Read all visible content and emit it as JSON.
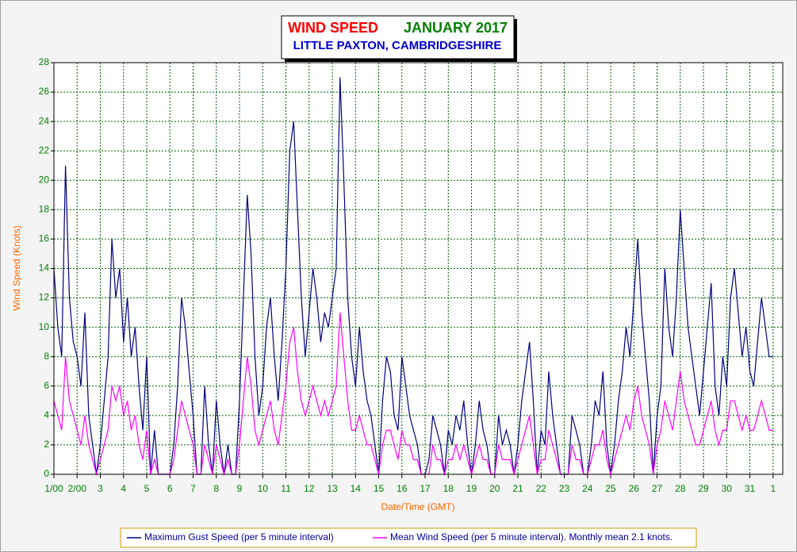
{
  "chart_data": {
    "type": "line",
    "title": "WIND SPEED",
    "title_month": "JANUARY 2017",
    "subtitle": "LITTLE PAXTON, CAMBRIDGESHIRE",
    "xlabel": "Date/Time (GMT)",
    "ylabel": "Wind Speed (Knots)",
    "grid": true,
    "legend": "bottom",
    "xlim": [
      0,
      754
    ],
    "ylim": [
      0,
      28
    ],
    "yticks": [
      0,
      2,
      4,
      6,
      8,
      10,
      12,
      14,
      16,
      18,
      20,
      22,
      24,
      26,
      28
    ],
    "xticks": [
      {
        "value": 0,
        "label": "1/00"
      },
      {
        "value": 24,
        "label": "2/00"
      },
      {
        "value": 48,
        "label": "3"
      },
      {
        "value": 72,
        "label": "4"
      },
      {
        "value": 96,
        "label": "5"
      },
      {
        "value": 120,
        "label": "6"
      },
      {
        "value": 144,
        "label": "7"
      },
      {
        "value": 168,
        "label": "8"
      },
      {
        "value": 192,
        "label": "9"
      },
      {
        "value": 216,
        "label": "10"
      },
      {
        "value": 240,
        "label": "11"
      },
      {
        "value": 264,
        "label": "12"
      },
      {
        "value": 288,
        "label": "13"
      },
      {
        "value": 312,
        "label": "14"
      },
      {
        "value": 336,
        "label": "15"
      },
      {
        "value": 360,
        "label": "16"
      },
      {
        "value": 384,
        "label": "17"
      },
      {
        "value": 408,
        "label": "18"
      },
      {
        "value": 432,
        "label": "19"
      },
      {
        "value": 456,
        "label": "20"
      },
      {
        "value": 480,
        "label": "21"
      },
      {
        "value": 504,
        "label": "22"
      },
      {
        "value": 528,
        "label": "23"
      },
      {
        "value": 552,
        "label": "24"
      },
      {
        "value": 576,
        "label": "25"
      },
      {
        "value": 600,
        "label": "26"
      },
      {
        "value": 624,
        "label": "27"
      },
      {
        "value": 648,
        "label": "28"
      },
      {
        "value": 672,
        "label": "29"
      },
      {
        "value": 696,
        "label": "30"
      },
      {
        "value": 720,
        "label": "31"
      },
      {
        "value": 744,
        "label": "1"
      }
    ],
    "x": [
      0,
      4,
      8,
      12,
      16,
      20,
      24,
      28,
      32,
      36,
      40,
      44,
      48,
      52,
      56,
      60,
      64,
      68,
      72,
      76,
      80,
      84,
      88,
      92,
      96,
      100,
      104,
      108,
      112,
      116,
      120,
      124,
      128,
      132,
      136,
      140,
      144,
      148,
      152,
      156,
      160,
      164,
      168,
      172,
      176,
      180,
      184,
      188,
      192,
      196,
      200,
      204,
      208,
      212,
      216,
      220,
      224,
      228,
      232,
      236,
      240,
      244,
      248,
      252,
      256,
      260,
      264,
      268,
      272,
      276,
      280,
      284,
      288,
      292,
      296,
      300,
      304,
      308,
      312,
      316,
      320,
      324,
      328,
      332,
      336,
      340,
      344,
      348,
      352,
      356,
      360,
      364,
      368,
      372,
      376,
      380,
      384,
      388,
      392,
      396,
      400,
      404,
      408,
      412,
      416,
      420,
      424,
      428,
      432,
      436,
      440,
      444,
      448,
      452,
      456,
      460,
      464,
      468,
      472,
      476,
      480,
      484,
      488,
      492,
      496,
      500,
      504,
      508,
      512,
      516,
      520,
      524,
      528,
      532,
      536,
      540,
      544,
      548,
      552,
      556,
      560,
      564,
      568,
      572,
      576,
      580,
      584,
      588,
      592,
      596,
      600,
      604,
      608,
      612,
      616,
      620,
      624,
      628,
      632,
      636,
      640,
      644,
      648,
      652,
      656,
      660,
      664,
      668,
      672,
      676,
      680,
      684,
      688,
      692,
      696,
      700,
      704,
      708,
      712,
      716,
      720,
      724,
      728,
      732,
      736,
      740,
      744
    ],
    "series": [
      {
        "name": "Maximum Gust Speed (per 5 minute interval)",
        "color": "#000080",
        "values": [
          14,
          10,
          8,
          21,
          12,
          9,
          8,
          6,
          11,
          4,
          2,
          0,
          2,
          5,
          8,
          16,
          12,
          14,
          9,
          12,
          8,
          10,
          6,
          3,
          8,
          0,
          3,
          0,
          0,
          0,
          0,
          2,
          6,
          12,
          10,
          7,
          4,
          0,
          0,
          6,
          2,
          0,
          5,
          2,
          0,
          2,
          0,
          0,
          5,
          12,
          19,
          15,
          8,
          4,
          6,
          10,
          12,
          8,
          5,
          9,
          14,
          22,
          24,
          18,
          12,
          8,
          11,
          14,
          12,
          9,
          11,
          10,
          12,
          14,
          27,
          20,
          12,
          8,
          6,
          10,
          7,
          5,
          4,
          2,
          0,
          5,
          8,
          7,
          4,
          3,
          8,
          6,
          4,
          3,
          2,
          0,
          0,
          1,
          4,
          3,
          2,
          0,
          3,
          2,
          4,
          3,
          5,
          2,
          0,
          2,
          5,
          3,
          2,
          0,
          0,
          4,
          2,
          3,
          2,
          0,
          2,
          5,
          7,
          9,
          5,
          0,
          3,
          2,
          7,
          4,
          2,
          0,
          0,
          0,
          4,
          3,
          2,
          0,
          0,
          2,
          5,
          4,
          7,
          2,
          0,
          2,
          5,
          7,
          10,
          8,
          12,
          16,
          11,
          8,
          5,
          0,
          4,
          6,
          14,
          10,
          8,
          12,
          18,
          14,
          10,
          8,
          6,
          4,
          7,
          10,
          13,
          6,
          4,
          8,
          6,
          12,
          14,
          11,
          8,
          10,
          7,
          6,
          9,
          12,
          10,
          8,
          8
        ]
      },
      {
        "name": "Mean Wind Speed (per 5 minute interval). Monthly mean 2.1 knots.",
        "color": "#ff00ff",
        "values": [
          5,
          4,
          3,
          8,
          5,
          4,
          3,
          2,
          4,
          2,
          1,
          0,
          1,
          2,
          3,
          6,
          5,
          6,
          4,
          5,
          3,
          4,
          2,
          1,
          3,
          0,
          1,
          0,
          0,
          0,
          0,
          1,
          3,
          5,
          4,
          3,
          2,
          0,
          0,
          2,
          1,
          0,
          2,
          1,
          0,
          1,
          0,
          0,
          2,
          5,
          8,
          6,
          3,
          2,
          3,
          4,
          5,
          3,
          2,
          4,
          6,
          9,
          10,
          7,
          5,
          4,
          5,
          6,
          5,
          4,
          5,
          4,
          5,
          6,
          11,
          8,
          5,
          3,
          3,
          4,
          3,
          2,
          2,
          1,
          0,
          2,
          3,
          3,
          2,
          1,
          3,
          2,
          2,
          1,
          1,
          0,
          0,
          0,
          2,
          1,
          1,
          0,
          1,
          1,
          2,
          1,
          2,
          1,
          0,
          1,
          2,
          1,
          1,
          0,
          0,
          2,
          1,
          1,
          1,
          0,
          1,
          2,
          3,
          4,
          2,
          0,
          1,
          1,
          3,
          2,
          1,
          0,
          0,
          0,
          2,
          1,
          1,
          0,
          0,
          1,
          2,
          2,
          3,
          1,
          0,
          1,
          2,
          3,
          4,
          3,
          5,
          6,
          4,
          3,
          2,
          0,
          2,
          3,
          5,
          4,
          3,
          5,
          7,
          5,
          4,
          3,
          2,
          2,
          3,
          4,
          5,
          3,
          2,
          3,
          3,
          5,
          5,
          4,
          3,
          4,
          3,
          3,
          4,
          5,
          4,
          3,
          3
        ]
      }
    ]
  }
}
